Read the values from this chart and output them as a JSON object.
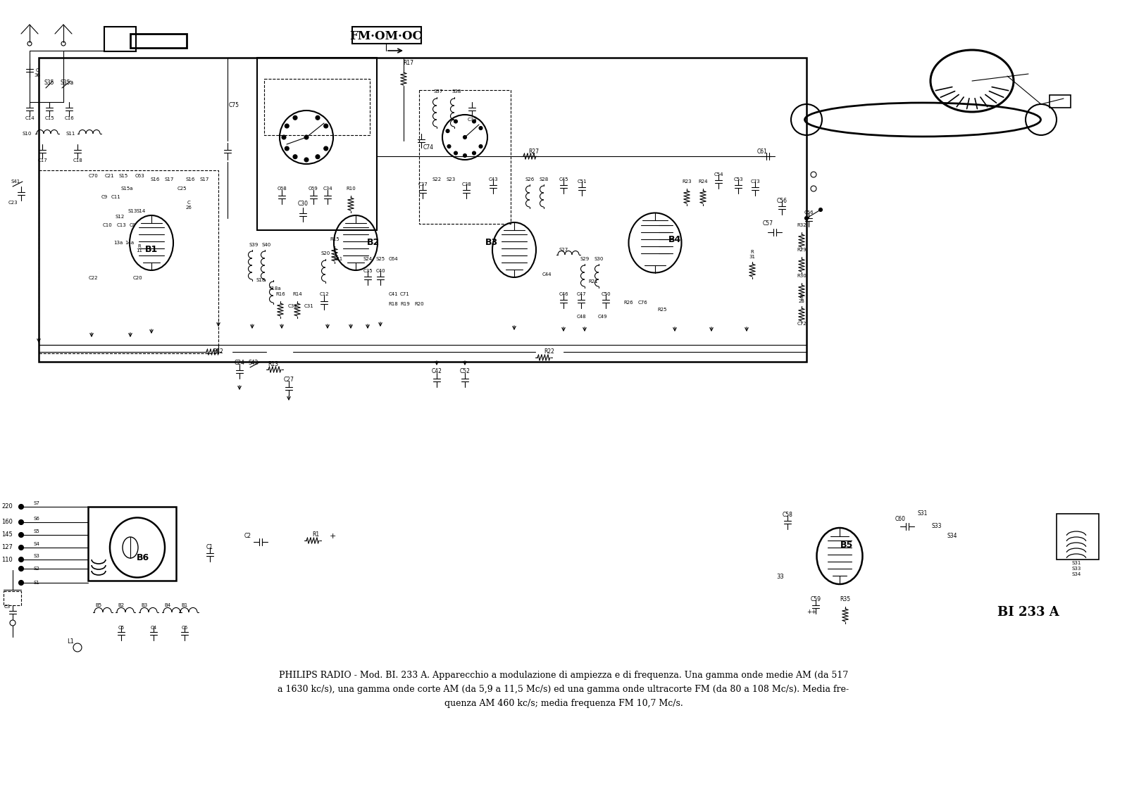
{
  "background_color": "#ffffff",
  "line_color": "#000000",
  "figsize": [
    16.0,
    11.31
  ],
  "dpi": 100,
  "caption_line1": "PHILIPS RADIO - Mod. BI. 233 A. Apparecchio a modulazione di ampiezza e di frequenza. Una gamma onde medie AM (da 517",
  "caption_line2": "a 1630 kc/s), una gamma onde corte AM (da 5,9 a 11,5 Mc/s) ed una gamma onde ultracorte FM (da 80 a 108 Mc/s). Media fre-",
  "caption_line3": "quenza AM 460 kc/s; media frequenza FM 10,7 Mc/s.",
  "fm_om_oc_label": "FM·OM·OC",
  "model_label": "BI 233 A"
}
